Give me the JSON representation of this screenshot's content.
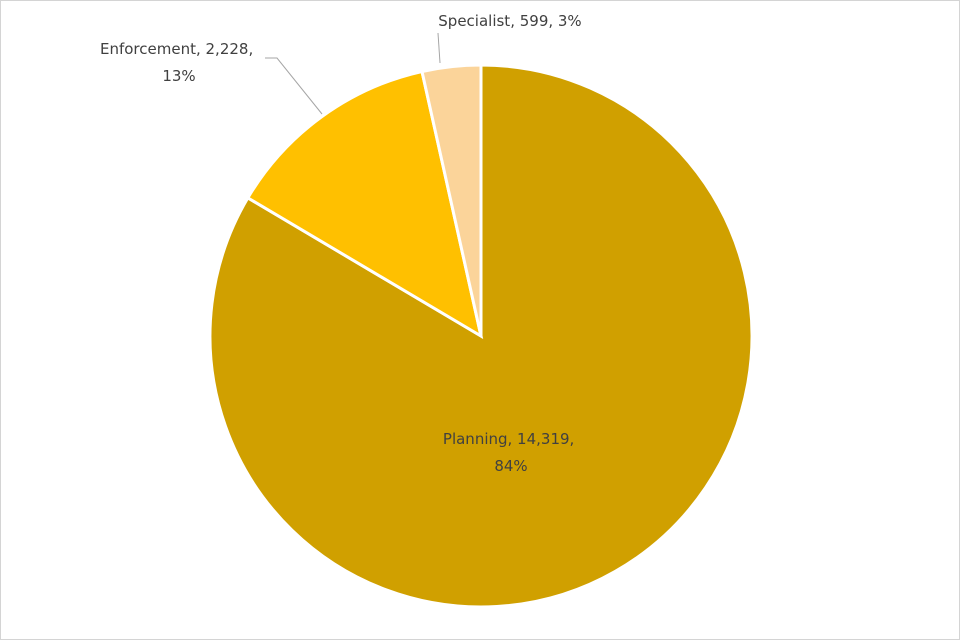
{
  "chart_data": {
    "type": "pie",
    "title": "",
    "legend": "none",
    "slices": [
      {
        "category": "Planning",
        "value": 14319,
        "percent": 84,
        "color": "#D0A000",
        "label_lines": [
          "Planning, 14,319,",
          "84%"
        ]
      },
      {
        "category": "Enforcement",
        "value": 2228,
        "percent": 13,
        "color": "#FFC000",
        "label_lines": [
          "Enforcement, 2,228,",
          "13%"
        ]
      },
      {
        "category": "Specialist",
        "value": 599,
        "percent": 3,
        "color": "#FBD49A",
        "label_lines": [
          "Specialist, 599, 3%"
        ]
      }
    ]
  }
}
